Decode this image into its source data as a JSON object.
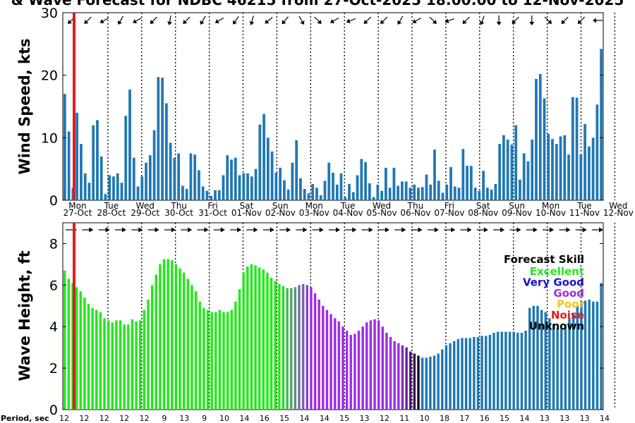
{
  "title": "& Wave Forecast for NDBC 46215 from 27-Oct-2025 18:00:00 to 12-Nov-2025",
  "chart_data": [
    {
      "type": "bar",
      "ylabel": "Wind Speed, kts",
      "ylim": [
        0,
        30
      ],
      "yticks": [
        0,
        10,
        20,
        30
      ],
      "bar_color": "#1f77b4",
      "values": [
        17,
        11,
        2,
        14,
        9,
        4.3,
        2.8,
        12,
        12.8,
        7,
        1,
        4,
        3.8,
        4.3,
        2.8,
        13.5,
        17.7,
        6.8,
        2.2,
        3.8,
        6,
        7.2,
        11.2,
        19.7,
        19.6,
        15.5,
        9.2,
        6.8,
        7.5,
        2.3,
        1.8,
        7.5,
        7.3,
        4.8,
        2.2,
        1.5,
        0.7,
        1.6,
        1.6,
        4,
        7.2,
        6.5,
        6.8,
        4,
        4.3,
        4.3,
        3.8,
        5,
        12.1,
        13.8,
        10,
        7.8,
        4.4,
        5.2,
        3.2,
        1.7,
        6,
        9.6,
        3.5,
        1.8,
        1.1,
        2.6,
        2,
        0.8,
        3.1,
        6,
        4.4,
        2.5,
        4.3,
        0.5,
        2.6,
        1.3,
        4,
        6.6,
        6.1,
        2.7,
        0.5,
        2.5,
        1.5,
        5.2,
        2,
        5.2,
        2.3,
        3,
        3,
        2,
        2.5,
        2,
        2.1,
        4.1,
        2.5,
        8.1,
        3.1,
        1.2,
        2.5,
        5.3,
        2.2,
        2,
        8.2,
        5.5,
        5.5,
        2,
        1.5,
        4.7,
        2,
        1.7,
        2.6,
        9,
        10.4,
        9.7,
        8.9,
        12,
        3.3,
        7.5,
        6.2,
        9.7,
        19.4,
        20.2,
        16.3,
        10.6,
        9.8,
        9,
        10.2,
        10.4,
        7.3,
        16.5,
        16.4,
        7.3,
        12.2,
        8.6,
        10,
        15.3,
        24.2
      ],
      "day_labels": [
        "Mon",
        "Tue",
        "Wed",
        "Thu",
        "Fri",
        "Sat",
        "Sun",
        "Mon",
        "Tue",
        "Wed",
        "Thu",
        "Fri",
        "Sat",
        "Sun",
        "Mon",
        "Tue",
        "Wed"
      ],
      "date_labels": [
        "27-Oct",
        "28-Oct",
        "29-Oct",
        "30-Oct",
        "31-Oct",
        "01-Nov",
        "02-Nov",
        "03-Nov",
        "04-Nov",
        "05-Nov",
        "06-Nov",
        "07-Nov",
        "08-Nov",
        "09-Nov",
        "10-Nov",
        "11-Nov",
        "12-Nov"
      ],
      "wind_direction_arrows_deg": [
        135,
        135,
        150,
        120,
        150,
        135,
        100,
        135,
        120,
        150,
        125,
        105,
        140,
        130,
        60,
        45,
        150,
        160,
        135,
        135,
        120,
        150,
        45,
        160,
        135,
        110,
        90,
        135,
        90,
        45,
        135,
        135,
        180
      ]
    },
    {
      "type": "bar",
      "ylabel": "Wave Height, ft",
      "xlabel": "Period, sec",
      "ylim": [
        0,
        9
      ],
      "yticks": [
        0,
        2,
        4,
        6,
        8
      ],
      "values": [
        6.7,
        6.3,
        6.1,
        5.9,
        5.7,
        5.4,
        5.1,
        4.9,
        4.8,
        4.7,
        4.4,
        4.3,
        4.2,
        4.3,
        4.3,
        4.1,
        4.1,
        4.35,
        4.25,
        4.3,
        4.8,
        5.3,
        6,
        6.5,
        7,
        7.25,
        7.25,
        7.2,
        7,
        6.8,
        6.6,
        6.3,
        6,
        5.7,
        5.2,
        4.9,
        4.8,
        4.7,
        4.7,
        4.8,
        4.7,
        4.7,
        4.8,
        5.2,
        5.8,
        6.6,
        6.9,
        7,
        6.95,
        6.85,
        6.75,
        6.6,
        6.35,
        6.2,
        6.05,
        5.95,
        5.85,
        5.85,
        5.9,
        6.0,
        6.05,
        6.0,
        5.9,
        5.6,
        5.3,
        5.0,
        4.8,
        4.6,
        4.4,
        4.25,
        4.0,
        3.8,
        3.6,
        3.65,
        3.8,
        4.0,
        4.2,
        4.3,
        4.35,
        4.3,
        4.0,
        3.7,
        3.5,
        3.3,
        3.2,
        3.1,
        3.0,
        2.8,
        2.7,
        2.6,
        2.5,
        2.5,
        2.55,
        2.6,
        2.7,
        2.9,
        3.1,
        3.2,
        3.3,
        3.4,
        3.45,
        3.45,
        3.45,
        3.5,
        3.5,
        3.55,
        3.55,
        3.6,
        3.7,
        3.75,
        3.75,
        3.75,
        3.75,
        3.75,
        3.7,
        3.7,
        3.8,
        4.9,
        5.0,
        5.0,
        4.8,
        4.7,
        4.4,
        4.1,
        3.9,
        3.9,
        4.1,
        4.4,
        4.6,
        5.0,
        5.2,
        5.25,
        5.3,
        5.2,
        5.2,
        6.1
      ],
      "skill_segments": [
        {
          "from": 0,
          "to": 54,
          "skill": "Excellent"
        },
        {
          "from": 54,
          "to": 62,
          "skill": "Very Good"
        },
        {
          "from": 62,
          "to": 84,
          "skill": "Good"
        },
        {
          "from": 84,
          "to": 90,
          "skill": "Unknown"
        },
        {
          "from": 90,
          "to": 134,
          "skill": "Very Good"
        }
      ],
      "period_labels": [
        "12",
        "12",
        "12",
        "12",
        "12",
        "9",
        "13",
        "9",
        "10",
        "14",
        "16",
        "15",
        "14",
        "14",
        "15",
        "13",
        "12",
        "11",
        "10",
        "18",
        "17",
        "16",
        "15",
        "14",
        "13",
        "13",
        "13",
        "14"
      ],
      "legend": {
        "title": "Forecast Skill",
        "entries": [
          {
            "label": "Excellent",
            "color": "#22e81a"
          },
          {
            "label": "Very Good",
            "color": "#1a14ce"
          },
          {
            "label": "Good",
            "color": "#9c2ee6"
          },
          {
            "label": "Poor",
            "color": "#f0c419"
          },
          {
            "label": "Noise",
            "color": "#e81818"
          },
          {
            "label": "Unknown",
            "color": "#000000"
          }
        ]
      }
    }
  ],
  "colors": {
    "wind_bars": "#1f77b4",
    "excellent": "#22e81a",
    "very_good_bars": "#1f77b4",
    "good": "#9c2ee6",
    "unknown": "#000000",
    "now_marker": "#e41a1c"
  }
}
